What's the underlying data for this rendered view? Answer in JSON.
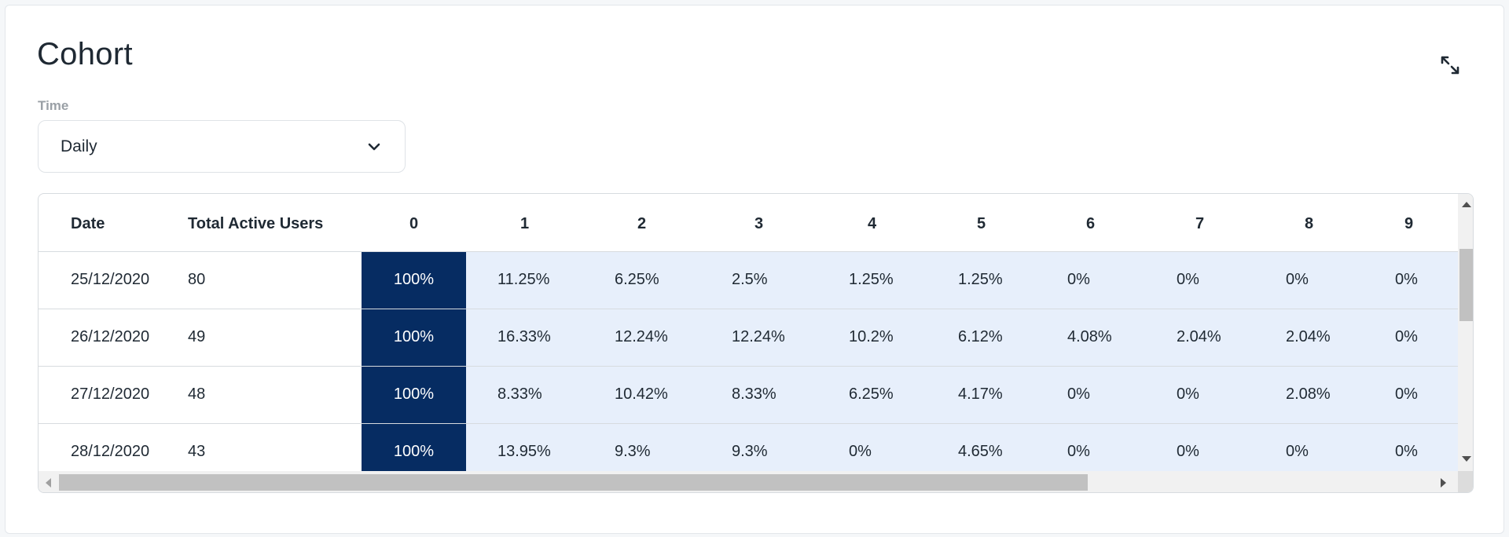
{
  "header": {
    "title": "Cohort",
    "expand_icon": "expand-arrows-icon"
  },
  "filter": {
    "label": "Time",
    "value": "Daily",
    "chevron_icon": "chevron-down-icon"
  },
  "table": {
    "columns": [
      "Date",
      "Total Active Users",
      "0",
      "1",
      "2",
      "3",
      "4",
      "5",
      "6",
      "7",
      "8",
      "9"
    ],
    "rows": [
      [
        "25/12/2020",
        "80",
        "100%",
        "11.25%",
        "6.25%",
        "2.5%",
        "1.25%",
        "1.25%",
        "0%",
        "0%",
        "0%",
        "0%"
      ],
      [
        "26/12/2020",
        "49",
        "100%",
        "16.33%",
        "12.24%",
        "12.24%",
        "10.2%",
        "6.12%",
        "4.08%",
        "2.04%",
        "2.04%",
        "0%"
      ],
      [
        "27/12/2020",
        "48",
        "100%",
        "8.33%",
        "10.42%",
        "8.33%",
        "6.25%",
        "4.17%",
        "0%",
        "0%",
        "2.08%",
        "0%"
      ],
      [
        "28/12/2020",
        "43",
        "100%",
        "13.95%",
        "9.3%",
        "9.3%",
        "0%",
        "4.65%",
        "0%",
        "0%",
        "0%",
        "0%"
      ]
    ]
  },
  "colors": {
    "day0_cell": "#062c62",
    "retention_cell": "#e7effb",
    "accent": "#1f2933"
  }
}
